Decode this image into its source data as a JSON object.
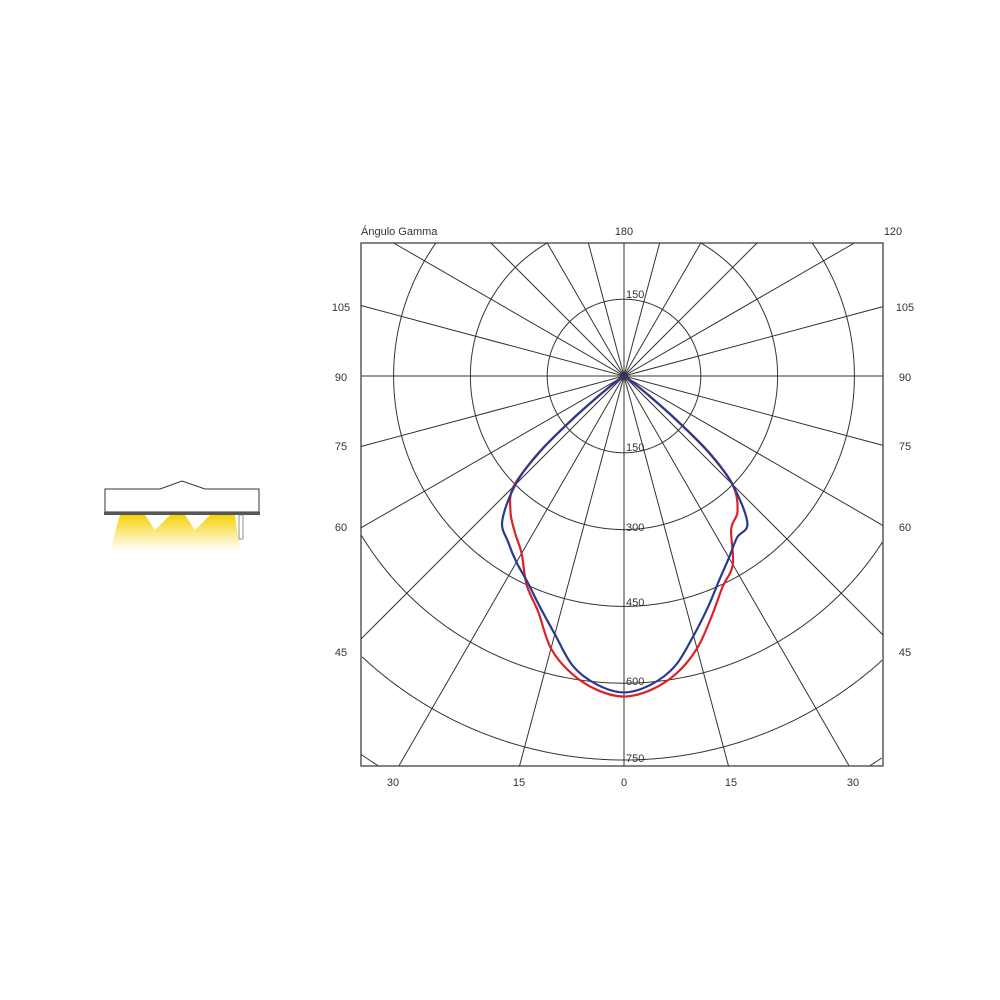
{
  "chart_data": {
    "type": "polar",
    "title": "",
    "corner_label": "Ángulo Gamma",
    "top_labels": [
      "180",
      "120"
    ],
    "side_labels": [
      "105",
      "90",
      "75",
      "60",
      "45"
    ],
    "bottom_labels": [
      "30",
      "15",
      "0",
      "15",
      "30"
    ],
    "ring_labels": [
      "150",
      "150",
      "300",
      "450",
      "600",
      "750"
    ],
    "ring_step_cd": 150,
    "spoke_step_deg": 15,
    "grid": true,
    "series": [
      {
        "color": "#d8232a",
        "angles": [
          -60,
          -55,
          -52,
          -50,
          -48,
          -45,
          -40,
          -35,
          -30,
          -25,
          -20,
          -15,
          -10,
          -5,
          0,
          5,
          10,
          15,
          20,
          25,
          30,
          35,
          40,
          45,
          48,
          50,
          52,
          55,
          60
        ],
        "values": [
          0,
          15,
          60,
          130,
          220,
          305,
          345,
          372,
          400,
          450,
          490,
          551,
          590,
          615,
          626,
          615,
          590,
          551,
          500,
          455,
          425,
          365,
          345,
          300,
          220,
          130,
          60,
          15,
          0
        ]
      },
      {
        "color": "#2b3a8c",
        "angles": [
          -60,
          -55,
          -52,
          -50,
          -48,
          -45,
          -40,
          -35,
          -30,
          -25,
          -20,
          -15,
          -10,
          -5,
          0,
          5,
          10,
          15,
          20,
          25,
          30,
          35,
          40,
          45,
          48,
          50,
          52,
          55,
          60
        ],
        "values": [
          0,
          15,
          60,
          135,
          225,
          300,
          370,
          395,
          420,
          445,
          480,
          522,
          575,
          605,
          618,
          605,
          575,
          525,
          480,
          440,
          410,
          385,
          375,
          300,
          225,
          135,
          60,
          15,
          0
        ]
      }
    ]
  },
  "colors": {
    "grid": "#333333",
    "light": "#f5d20a"
  }
}
